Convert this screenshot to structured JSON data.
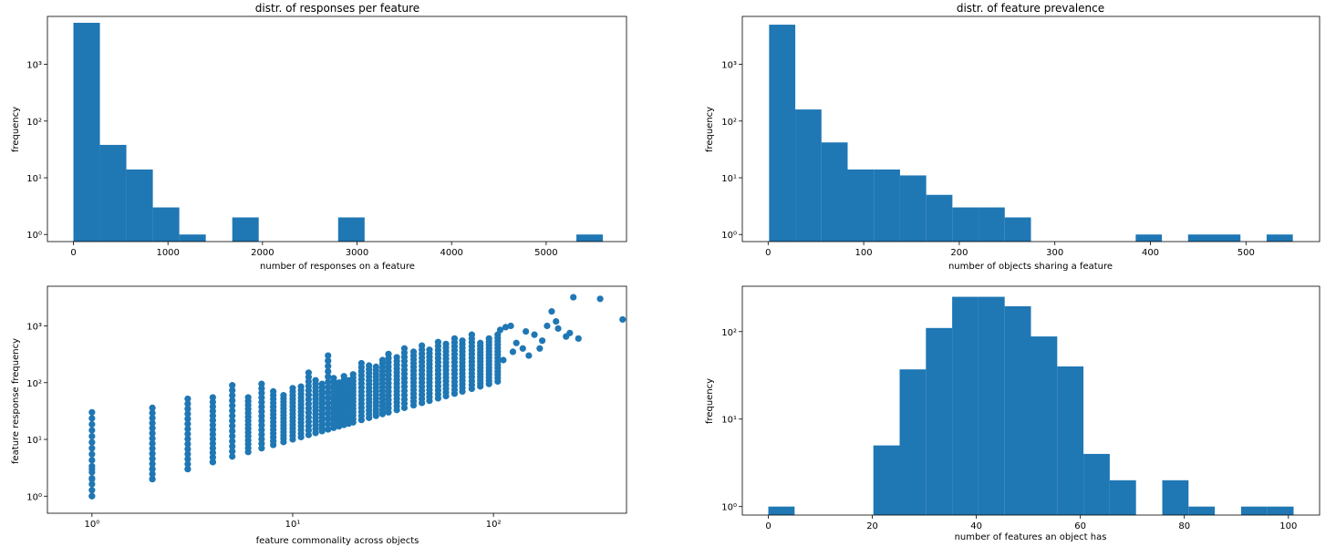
{
  "chart_data": [
    {
      "type": "bar",
      "title": "distr. of responses per feature",
      "xlabel": "number of responses on a feature",
      "ylabel": "frequency",
      "yscale": "log",
      "xlim": [
        -275,
        5850
      ],
      "ylim": [
        0.75,
        7000
      ],
      "xticks": [
        0,
        1000,
        2000,
        3000,
        4000,
        5000
      ],
      "yticks": [
        {
          "value": 1,
          "label": "10⁰"
        },
        {
          "value": 10,
          "label": "10¹"
        },
        {
          "value": 100,
          "label": "10²"
        },
        {
          "value": 1000,
          "label": "10³"
        }
      ],
      "bin_edges": [
        0,
        280,
        560,
        840,
        1120,
        1400,
        1680,
        1960,
        2240,
        2520,
        2800,
        3080,
        3360,
        3640,
        3920,
        4200,
        4480,
        4760,
        5040,
        5320,
        5600
      ],
      "values": [
        5400,
        38,
        14,
        3,
        1,
        0,
        2,
        0,
        0,
        0,
        2,
        0,
        0,
        0,
        0,
        0,
        0,
        0,
        0,
        1
      ],
      "color": "#1f77b4"
    },
    {
      "type": "bar",
      "title": "distr. of feature prevalence",
      "xlabel": "number of objects sharing a feature",
      "ylabel": "frequency",
      "yscale": "log",
      "xlim": [
        -27,
        577
      ],
      "ylim": [
        0.75,
        7000
      ],
      "xticks": [
        0,
        100,
        200,
        300,
        400,
        500
      ],
      "yticks": [
        {
          "value": 1,
          "label": "10⁰"
        },
        {
          "value": 10,
          "label": "10¹"
        },
        {
          "value": 100,
          "label": "10²"
        },
        {
          "value": 1000,
          "label": "10³"
        }
      ],
      "bin_edges": [
        1,
        28.4,
        55.8,
        83.2,
        110.6,
        138,
        165.4,
        192.8,
        220.2,
        247.6,
        275,
        302.4,
        329.8,
        357.2,
        384.6,
        412,
        439.4,
        466.8,
        494.2,
        521.6,
        549
      ],
      "values": [
        5000,
        160,
        42,
        14,
        14,
        11,
        5,
        3,
        3,
        2,
        0,
        0,
        0,
        0,
        1,
        0,
        1,
        1,
        0,
        1
      ],
      "color": "#1f77b4"
    },
    {
      "type": "scatter",
      "xlabel": "feature commonality across objects",
      "ylabel": "feature response frequency",
      "xscale": "log",
      "yscale": "log",
      "xlim": [
        0.6,
        460
      ],
      "ylim": [
        0.5,
        5000
      ],
      "xticks": [
        {
          "value": 1,
          "label": "10⁰"
        },
        {
          "value": 10,
          "label": "10¹"
        },
        {
          "value": 100,
          "label": "10²"
        }
      ],
      "yticks": [
        {
          "value": 1,
          "label": "10⁰"
        },
        {
          "value": 10,
          "label": "10¹"
        },
        {
          "value": 100,
          "label": "10²"
        },
        {
          "value": 1000,
          "label": "10³"
        }
      ],
      "columns": [
        {
          "x": 1,
          "ymin": 1,
          "ymax": 30,
          "extras": [
            1,
            2,
            3
          ]
        },
        {
          "x": 2,
          "ymin": 2,
          "ymax": 36,
          "extras": [
            2,
            3
          ]
        },
        {
          "x": 3,
          "ymin": 3,
          "ymax": 52,
          "extras": [
            3
          ]
        },
        {
          "x": 4,
          "ymin": 4,
          "ymax": 55,
          "extras": [
            4
          ]
        },
        {
          "x": 5,
          "ymin": 5,
          "ymax": 90,
          "extras": []
        },
        {
          "x": 6,
          "ymin": 6,
          "ymax": 55,
          "extras": []
        },
        {
          "x": 7,
          "ymin": 7,
          "ymax": 95,
          "extras": []
        },
        {
          "x": 8,
          "ymin": 8,
          "ymax": 70,
          "extras": []
        },
        {
          "x": 9,
          "ymin": 9,
          "ymax": 60,
          "extras": []
        },
        {
          "x": 10,
          "ymin": 10,
          "ymax": 80,
          "extras": []
        },
        {
          "x": 11,
          "ymin": 11,
          "ymax": 85,
          "extras": []
        },
        {
          "x": 12,
          "ymin": 12,
          "ymax": 150,
          "extras": []
        },
        {
          "x": 13,
          "ymin": 13,
          "ymax": 110,
          "extras": []
        },
        {
          "x": 14,
          "ymin": 14,
          "ymax": 95,
          "extras": []
        },
        {
          "x": 15,
          "ymin": 15,
          "ymax": 300,
          "extras": []
        },
        {
          "x": 16,
          "ymin": 16,
          "ymax": 120,
          "extras": []
        },
        {
          "x": 17,
          "ymin": 17,
          "ymax": 100,
          "extras": []
        },
        {
          "x": 18,
          "ymin": 18,
          "ymax": 130,
          "extras": []
        },
        {
          "x": 19,
          "ymin": 19,
          "ymax": 110,
          "extras": []
        },
        {
          "x": 20,
          "ymin": 20,
          "ymax": 140,
          "extras": []
        },
        {
          "x": 22,
          "ymin": 22,
          "ymax": 220,
          "extras": []
        },
        {
          "x": 24,
          "ymin": 24,
          "ymax": 200,
          "extras": []
        },
        {
          "x": 26,
          "ymin": 26,
          "ymax": 190,
          "extras": []
        },
        {
          "x": 28,
          "ymin": 28,
          "ymax": 250,
          "extras": []
        },
        {
          "x": 30,
          "ymin": 30,
          "ymax": 320,
          "extras": []
        },
        {
          "x": 33,
          "ymin": 33,
          "ymax": 280,
          "extras": []
        },
        {
          "x": 36,
          "ymin": 36,
          "ymax": 400,
          "extras": []
        },
        {
          "x": 40,
          "ymin": 40,
          "ymax": 350,
          "extras": []
        },
        {
          "x": 44,
          "ymin": 44,
          "ymax": 450,
          "extras": []
        },
        {
          "x": 48,
          "ymin": 48,
          "ymax": 380,
          "extras": []
        },
        {
          "x": 53,
          "ymin": 53,
          "ymax": 520,
          "extras": []
        },
        {
          "x": 58,
          "ymin": 58,
          "ymax": 480,
          "extras": []
        },
        {
          "x": 64,
          "ymin": 64,
          "ymax": 600,
          "extras": []
        },
        {
          "x": 70,
          "ymin": 70,
          "ymax": 550,
          "extras": []
        },
        {
          "x": 78,
          "ymin": 78,
          "ymax": 700,
          "extras": []
        },
        {
          "x": 86,
          "ymin": 86,
          "ymax": 500,
          "extras": []
        },
        {
          "x": 95,
          "ymin": 95,
          "ymax": 600,
          "extras": []
        },
        {
          "x": 105,
          "ymin": 105,
          "ymax": 700,
          "extras": []
        }
      ],
      "outliers": [
        {
          "x": 115,
          "y": 950
        },
        {
          "x": 122,
          "y": 1000
        },
        {
          "x": 108,
          "y": 850
        },
        {
          "x": 130,
          "y": 500
        },
        {
          "x": 140,
          "y": 400
        },
        {
          "x": 150,
          "y": 300
        },
        {
          "x": 125,
          "y": 350
        },
        {
          "x": 112,
          "y": 250
        },
        {
          "x": 160,
          "y": 700
        },
        {
          "x": 175,
          "y": 550
        },
        {
          "x": 185,
          "y": 1000
        },
        {
          "x": 195,
          "y": 1800
        },
        {
          "x": 205,
          "y": 1200
        },
        {
          "x": 230,
          "y": 650
        },
        {
          "x": 250,
          "y": 3200
        },
        {
          "x": 265,
          "y": 600
        },
        {
          "x": 340,
          "y": 3000
        },
        {
          "x": 440,
          "y": 1300
        },
        {
          "x": 210,
          "y": 900
        },
        {
          "x": 240,
          "y": 750
        },
        {
          "x": 170,
          "y": 400
        },
        {
          "x": 145,
          "y": 800
        }
      ],
      "color": "#1f77b4"
    },
    {
      "type": "bar",
      "xlabel": "number of features an object has",
      "ylabel": "frequency",
      "yscale": "log",
      "xlim": [
        -5,
        106
      ],
      "ylim": [
        0.8,
        330
      ],
      "xticks": [
        0,
        20,
        40,
        60,
        80,
        100
      ],
      "yticks": [
        {
          "value": 1,
          "label": "10⁰"
        },
        {
          "value": 10,
          "label": "10¹"
        },
        {
          "value": 100,
          "label": "10²"
        }
      ],
      "bin_edges": [
        0,
        5.05,
        10.1,
        15.15,
        20.2,
        25.25,
        30.3,
        35.35,
        40.4,
        45.45,
        50.5,
        55.55,
        60.6,
        65.65,
        70.7,
        75.75,
        80.8,
        85.85,
        90.9,
        95.95,
        101
      ],
      "values": [
        1,
        0,
        0,
        0,
        5,
        37,
        110,
        250,
        250,
        195,
        88,
        40,
        4,
        2,
        0,
        2,
        1,
        0,
        1,
        1
      ],
      "color": "#1f77b4"
    }
  ]
}
